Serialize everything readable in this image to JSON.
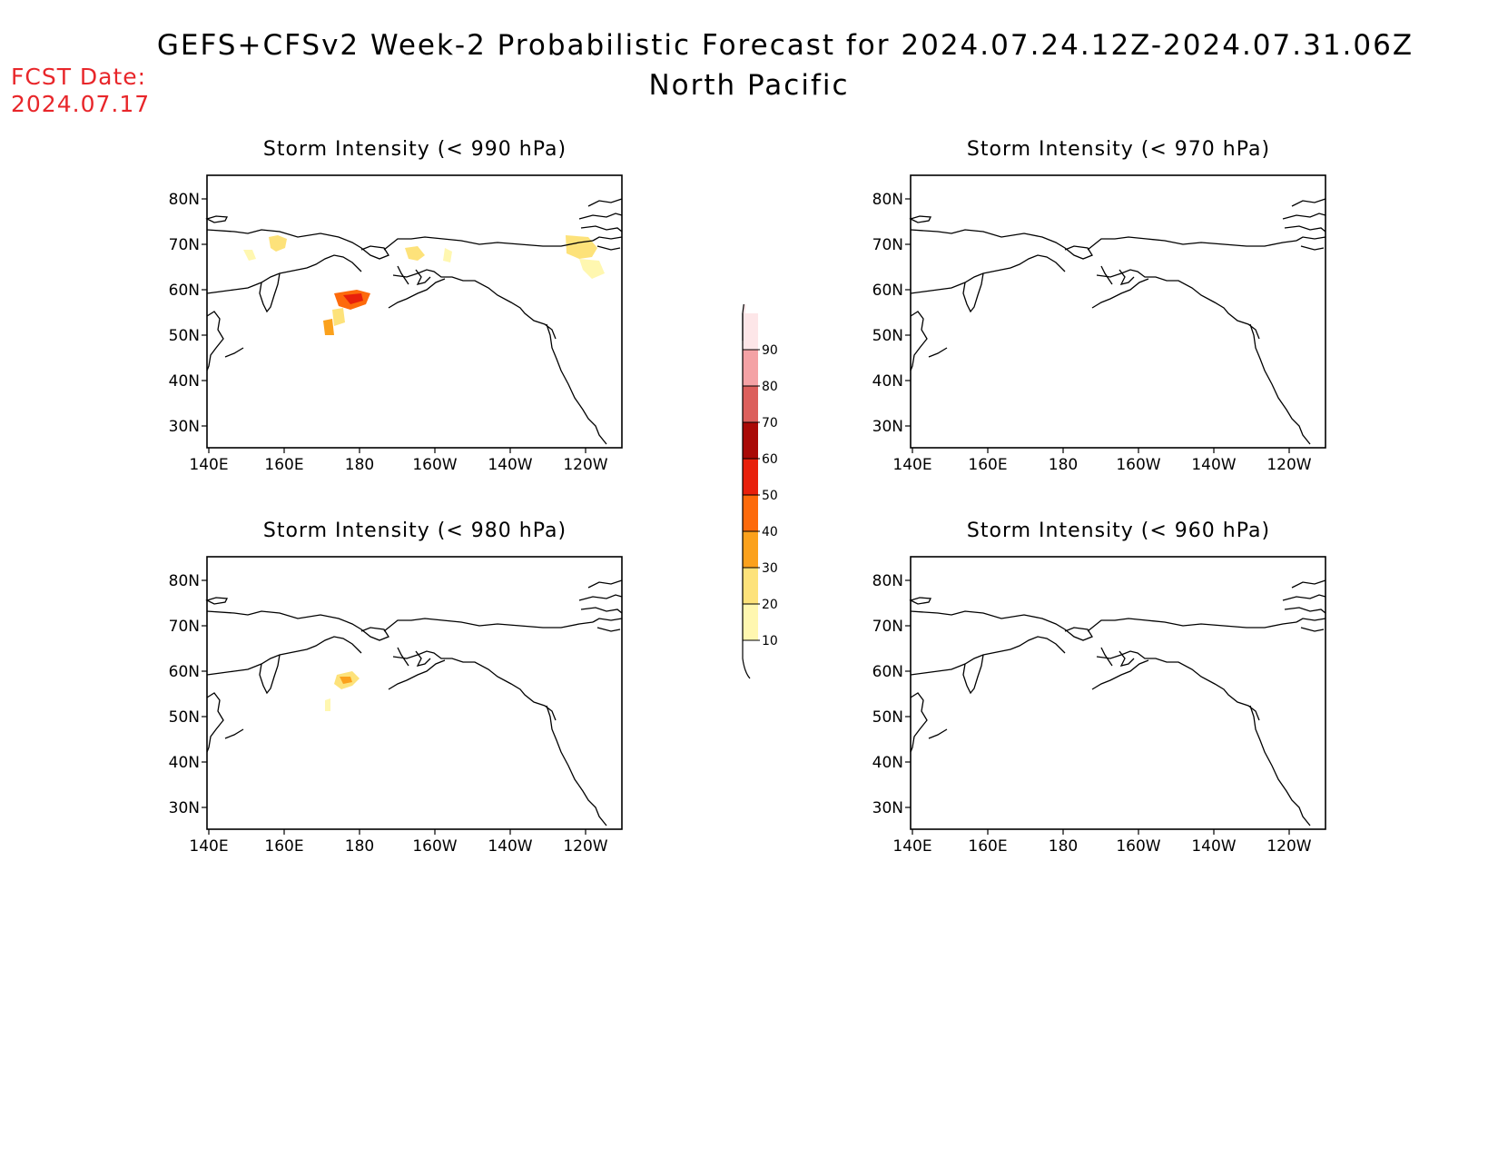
{
  "header": {
    "title": "GEFS+CFSv2 Week-2 Probabilistic Forecast for 2024.07.24.12Z-2024.07.31.06Z",
    "subtitle": "North Pacific",
    "fcst_label": "FCST Date:",
    "fcst_date": "2024.07.17"
  },
  "axes": {
    "lon_ticks": [
      "140E",
      "160E",
      "180",
      "160W",
      "140W",
      "120W"
    ],
    "lat_ticks": [
      "80N",
      "70N",
      "60N",
      "50N",
      "40N",
      "30N"
    ]
  },
  "panels": [
    {
      "id": "p990",
      "title": "Storm Intensity (< 990 hPa)",
      "has_signal": true
    },
    {
      "id": "p970",
      "title": "Storm Intensity (< 970 hPa)",
      "has_signal": false
    },
    {
      "id": "p980",
      "title": "Storm Intensity (< 980 hPa)",
      "has_signal": true
    },
    {
      "id": "p960",
      "title": "Storm Intensity (< 960 hPa)",
      "has_signal": false
    }
  ],
  "colorbar": {
    "levels": [
      "10",
      "20",
      "30",
      "40",
      "50",
      "60",
      "70",
      "80",
      "90"
    ],
    "colors": [
      "#fff7b0",
      "#fde27a",
      "#fba11c",
      "#fd6a0b",
      "#e8200b",
      "#a90a07",
      "#dc5f5c",
      "#f4a2a5",
      "#fde6e8"
    ]
  }
}
